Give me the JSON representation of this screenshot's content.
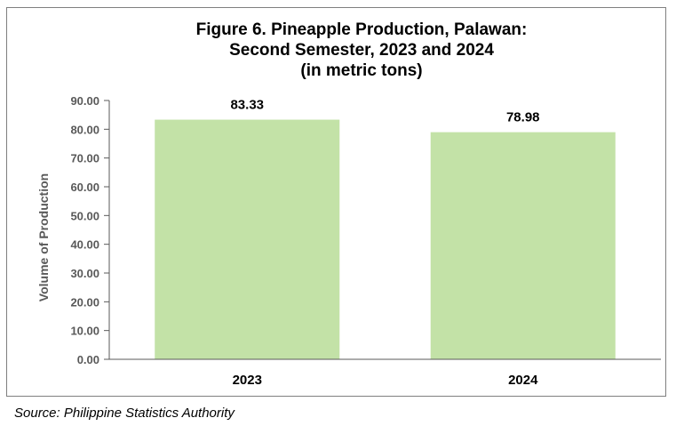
{
  "chart_data": {
    "type": "bar",
    "title": [
      "Figure 6. Pineapple Production, Palawan:",
      "Second Semester, 2023 and 2024",
      "(in metric tons)"
    ],
    "categories": [
      "2023",
      "2024"
    ],
    "values": [
      83.33,
      78.98
    ],
    "value_labels": [
      "83.33",
      "78.98"
    ],
    "ylabel": "Volume of Production",
    "xlabel": "",
    "ylim": [
      0,
      90
    ],
    "yticks": [
      "0.00",
      "10.00",
      "20.00",
      "30.00",
      "40.00",
      "50.00",
      "60.00",
      "70.00",
      "80.00",
      "90.00"
    ],
    "grid": false,
    "legend": "none",
    "bar_color": "#c3e2a7",
    "axis_color": "#595959"
  },
  "source": "Source: Philippine Statistics Authority"
}
